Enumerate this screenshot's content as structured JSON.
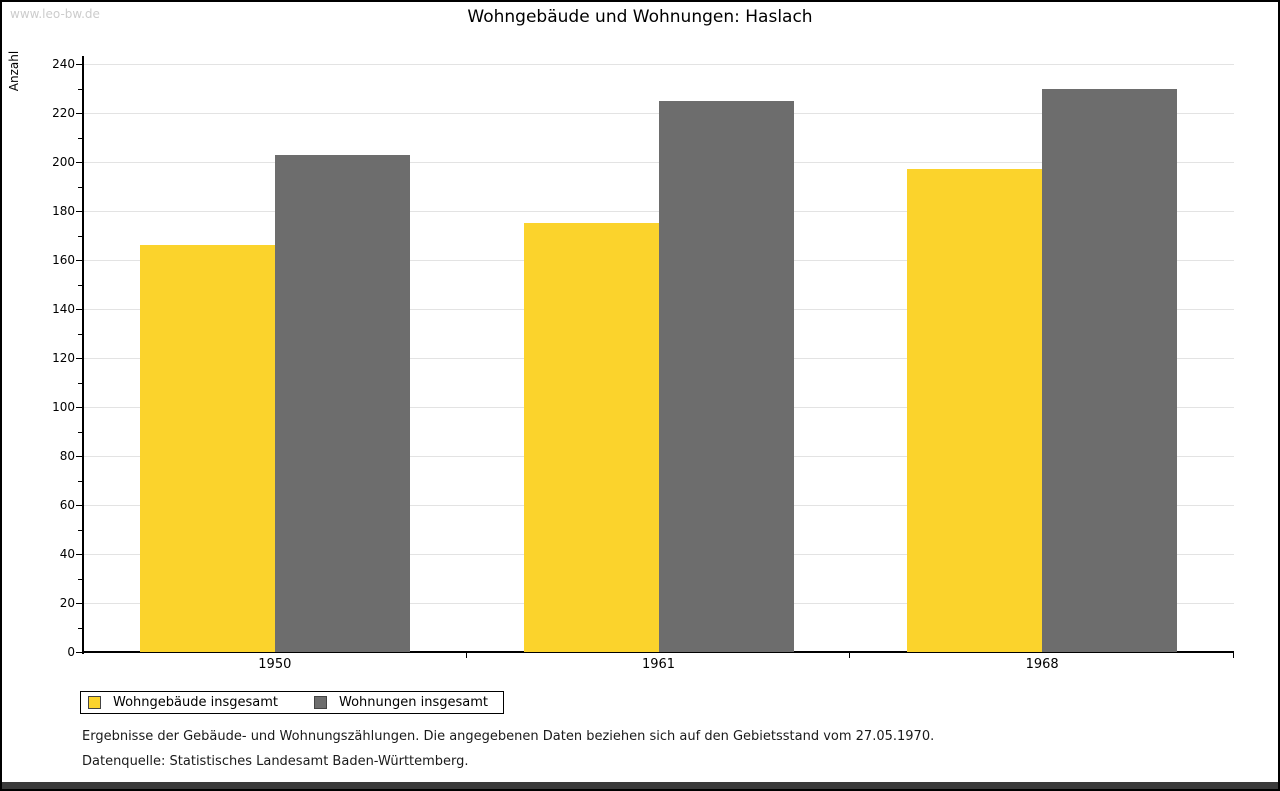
{
  "watermark": "www.leo-bw.de",
  "title": "Wohngebäude und Wohnungen: Haslach",
  "chart_data": {
    "type": "bar",
    "title": "Wohngebäude und Wohnungen: Haslach",
    "categories": [
      "1950",
      "1961",
      "1968"
    ],
    "series": [
      {
        "name": "Wohngebäude insgesamt",
        "color": "#FBD32C",
        "values": [
          166,
          175,
          197
        ]
      },
      {
        "name": "Wohnungen insgesamt",
        "color": "#6D6D6D",
        "values": [
          203,
          225,
          230
        ]
      }
    ],
    "ylabel": "Anzahl",
    "xlabel": "",
    "ylim": [
      0,
      240
    ],
    "ytick_step": 20,
    "minor_tick_step": 10,
    "grid": true,
    "legend_position": "bottom-left"
  },
  "footnotes": [
    "Ergebnisse der Gebäude- und Wohnungszählungen. Die angegebenen Daten beziehen sich auf den Gebietsstand vom 27.05.1970.",
    "Datenquelle: Statistisches Landesamt Baden-Württemberg."
  ],
  "colors": {
    "bar_yellow": "#FBD32C",
    "bar_gray": "#6D6D6D",
    "gridline": "#e3e3e3",
    "axis": "#000000",
    "watermark": "#cccccc",
    "bottom_bar": "#3a3a3a"
  }
}
